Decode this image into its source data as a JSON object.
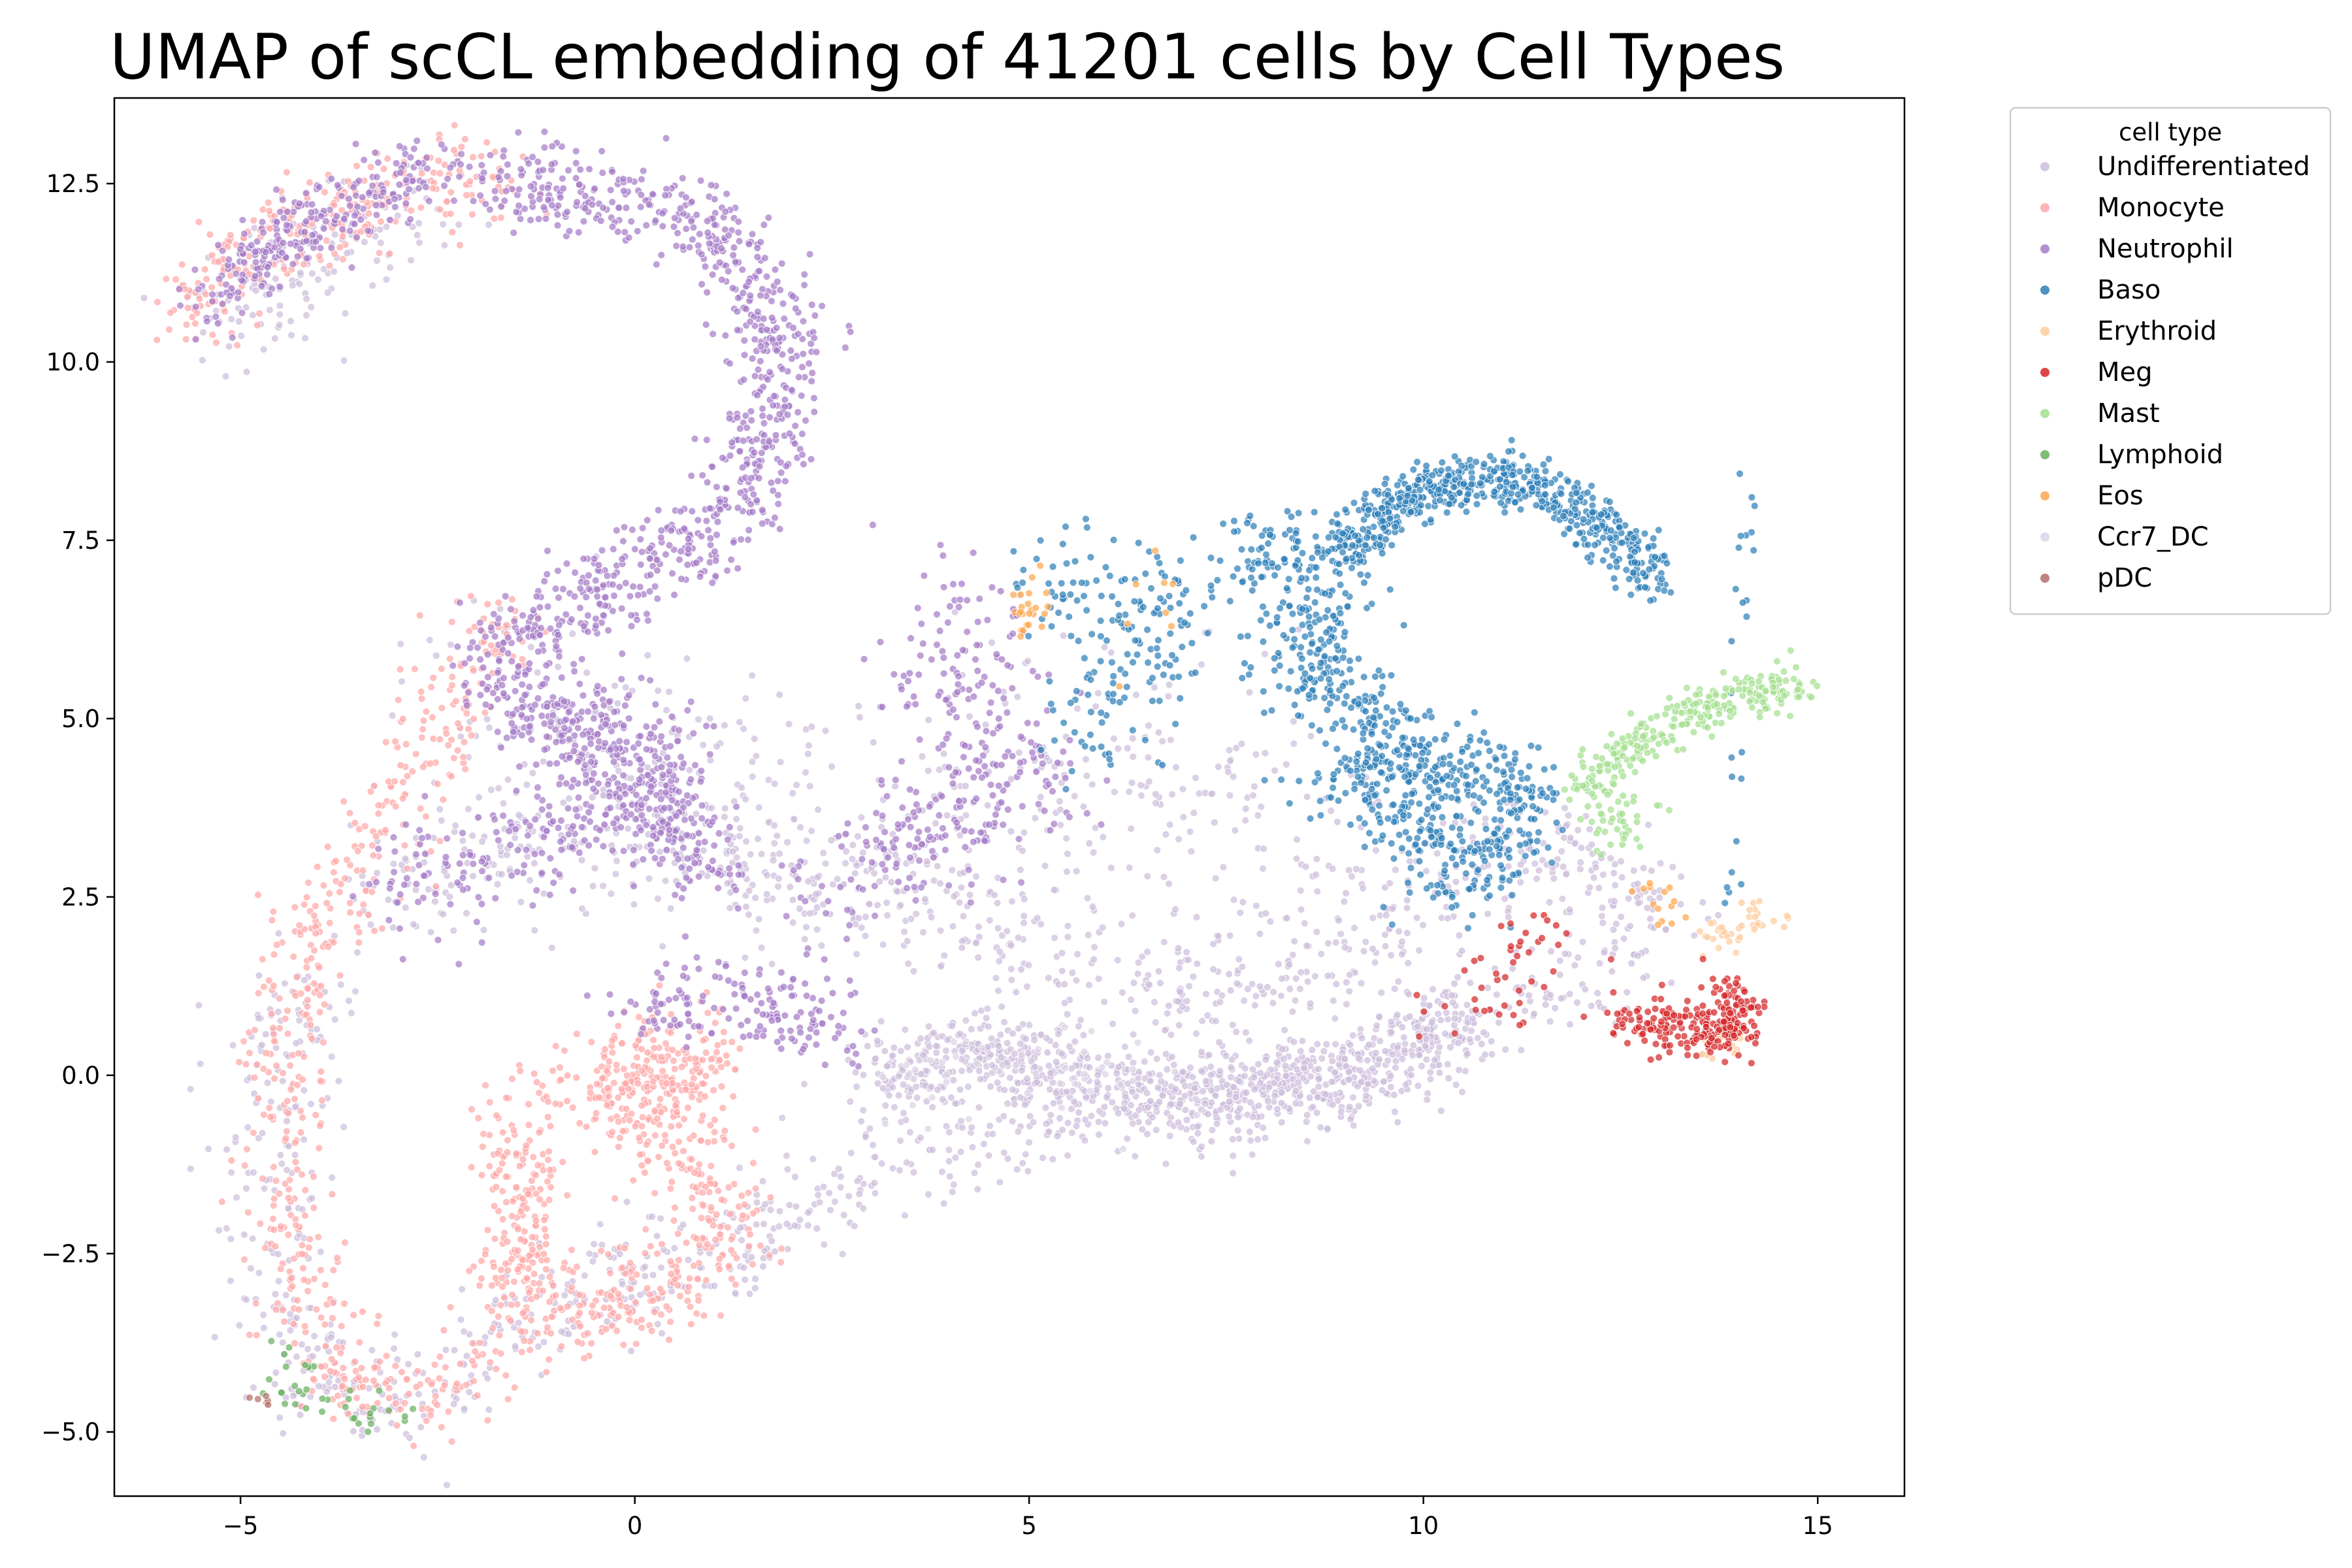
{
  "chart_data": {
    "type": "scatter",
    "title": "UMAP of scCL embedding of 41201 cells by Cell Types",
    "xlabel": "",
    "ylabel": "",
    "xlim": [
      -6.6,
      16.1
    ],
    "ylim": [
      -5.9,
      13.7
    ],
    "xticks": [
      -5,
      0,
      5,
      10,
      15
    ],
    "xtick_labels": [
      "−5",
      "0",
      "5",
      "10",
      "15"
    ],
    "yticks": [
      -5.0,
      -2.5,
      0.0,
      2.5,
      5.0,
      7.5,
      10.0,
      12.5
    ],
    "ytick_labels": [
      "−5.0",
      "−2.5",
      "0.0",
      "2.5",
      "5.0",
      "7.5",
      "10.0",
      "12.5"
    ],
    "grid": false,
    "legend": {
      "title": "cell type",
      "placement": "outside-top-right"
    },
    "series": [
      {
        "name": "Undifferentiated",
        "color": "#cdbedb",
        "regions": [
          {
            "path": [
              [
                -4.2,
                1.5
              ],
              [
                -4.6,
                0.0
              ],
              [
                -4.5,
                -2.5
              ],
              [
                -4.2,
                -4.0
              ],
              [
                -3.2,
                -4.6
              ],
              [
                -2.5,
                -4.4
              ],
              [
                -1.4,
                -3.4
              ],
              [
                0.5,
                -2.7
              ],
              [
                2.5,
                -1.8
              ],
              [
                4.0,
                -0.8
              ],
              [
                6.0,
                -0.5
              ],
              [
                8.0,
                -0.4
              ],
              [
                9.5,
                0.2
              ],
              [
                10.6,
                0.8
              ],
              [
                12.0,
                1.5
              ],
              [
                13.0,
                2.4
              ],
              [
                11.5,
                3.2
              ],
              [
                10.2,
                2.8
              ],
              [
                9.0,
                1.5
              ],
              [
                7.0,
                1.2
              ],
              [
                5.0,
                1.8
              ],
              [
                3.5,
                2.5
              ],
              [
                2.0,
                2.7
              ],
              [
                0.5,
                3.3
              ],
              [
                -1.0,
                3.2
              ],
              [
                -2.5,
                2.8
              ],
              [
                -3.5,
                2.5
              ]
            ],
            "n": 1500,
            "jitter": 0.4
          },
          {
            "path": [
              [
                -2.5,
                4.5
              ],
              [
                -1.0,
                4.8
              ],
              [
                1.0,
                4.3
              ],
              [
                2.2,
                3.2
              ],
              [
                3.0,
                2.8
              ],
              [
                4.5,
                3.3
              ],
              [
                5.5,
                4.8
              ],
              [
                6.5,
                4.3
              ],
              [
                7.5,
                3.6
              ],
              [
                8.2,
                2.6
              ],
              [
                9.0,
                2.2
              ]
            ],
            "n": 500,
            "jitter": 0.9
          },
          {
            "path": [
              [
                3.0,
                0.0
              ],
              [
                4.5,
                0.3
              ],
              [
                6.0,
                -0.2
              ],
              [
                7.5,
                -0.3
              ],
              [
                9.0,
                0.0
              ],
              [
                10.5,
                0.8
              ]
            ],
            "n": 900,
            "jitter": 0.3
          },
          {
            "path": [
              [
                -5.5,
                10.5
              ],
              [
                -4.5,
                11.2
              ],
              [
                -3.5,
                11.8
              ],
              [
                -2.5,
                12.1
              ]
            ],
            "n": 140,
            "jitter": 0.4
          }
        ]
      },
      {
        "name": "Monocyte",
        "color": "#ffa7a7",
        "regions": [
          {
            "path": [
              [
                -5.6,
                10.6
              ],
              [
                -5.0,
                11.5
              ],
              [
                -4.3,
                12.0
              ],
              [
                -3.6,
                12.2
              ],
              [
                -2.7,
                12.5
              ],
              [
                -1.6,
                12.6
              ]
            ],
            "n": 260,
            "jitter": 0.35
          },
          {
            "path": [
              [
                -1.6,
                6.5
              ],
              [
                -2.3,
                5.2
              ],
              [
                -3.0,
                3.8
              ],
              [
                -3.6,
                2.6
              ],
              [
                -4.2,
                1.6
              ],
              [
                -4.4,
                0.2
              ],
              [
                -4.4,
                -1.5
              ],
              [
                -4.2,
                -3.2
              ],
              [
                -3.6,
                -4.3
              ],
              [
                -2.6,
                -4.6
              ],
              [
                -1.8,
                -4.0
              ]
            ],
            "n": 520,
            "jitter": 0.3
          },
          {
            "path": [
              [
                -1.5,
                -0.5
              ],
              [
                -1.4,
                -2.0
              ],
              [
                -1.4,
                -3.4
              ],
              [
                -0.6,
                -3.3
              ],
              [
                0.5,
                -3.0
              ],
              [
                1.3,
                -2.2
              ],
              [
                0.8,
                -1.2
              ],
              [
                -0.3,
                -0.4
              ],
              [
                0.3,
                0.5
              ],
              [
                1.0,
                -0.1
              ],
              [
                -1.0,
                -0.2
              ]
            ],
            "n": 780,
            "jitter": 0.32
          }
        ]
      },
      {
        "name": "Neutrophil",
        "color": "#a57cc8",
        "regions": [
          {
            "path": [
              [
                -1.8,
                12.6
              ],
              [
                -0.6,
                12.3
              ],
              [
                0.6,
                12.2
              ],
              [
                1.5,
                11.3
              ],
              [
                1.9,
                10.3
              ],
              [
                1.8,
                9.2
              ],
              [
                1.4,
                8.3
              ],
              [
                0.8,
                7.5
              ],
              [
                -0.5,
                6.8
              ],
              [
                -1.3,
                6.2
              ],
              [
                -1.8,
                5.6
              ],
              [
                -1.2,
                5.0
              ],
              [
                -0.3,
                4.5
              ],
              [
                0.5,
                3.5
              ],
              [
                1.0,
                2.8
              ]
            ],
            "n": 1150,
            "jitter": 0.3
          },
          {
            "path": [
              [
                -5.3,
                10.8
              ],
              [
                -4.5,
                11.8
              ],
              [
                -3.5,
                12.3
              ],
              [
                -2.5,
                12.7
              ]
            ],
            "n": 260,
            "jitter": 0.25
          },
          {
            "path": [
              [
                -3.0,
                2.6
              ],
              [
                -2.0,
                3.0
              ],
              [
                -1.0,
                3.5
              ],
              [
                0.0,
                3.8
              ],
              [
                0.5,
                4.5
              ],
              [
                -0.8,
                5.2
              ]
            ],
            "n": 300,
            "jitter": 0.45
          },
          {
            "path": [
              [
                0.0,
                0.9
              ],
              [
                1.0,
                1.2
              ],
              [
                2.0,
                1.0
              ],
              [
                2.5,
                0.3
              ]
            ],
            "n": 160,
            "jitter": 0.3
          },
          {
            "path": [
              [
                2.5,
                2.3
              ],
              [
                3.2,
                3.2
              ],
              [
                4.0,
                3.5
              ],
              [
                5.0,
                4.3
              ],
              [
                4.0,
                5.5
              ],
              [
                4.2,
                6.8
              ]
            ],
            "n": 320,
            "jitter": 0.45
          }
        ]
      },
      {
        "name": "Baso",
        "color": "#2e7fb8",
        "regions": [
          {
            "path": [
              [
                9.0,
                7.3
              ],
              [
                9.5,
                7.9
              ],
              [
                10.2,
                8.3
              ],
              [
                11.0,
                8.4
              ],
              [
                11.8,
                8.0
              ],
              [
                12.5,
                7.5
              ],
              [
                12.9,
                6.9
              ]
            ],
            "n": 620,
            "jitter": 0.18
          },
          {
            "path": [
              [
                7.6,
                7.2
              ],
              [
                8.5,
                7.3
              ],
              [
                8.8,
                6.5
              ],
              [
                8.4,
                5.6
              ],
              [
                9.2,
                5.0
              ],
              [
                10.0,
                4.5
              ],
              [
                10.8,
                4.2
              ],
              [
                11.3,
                3.8
              ],
              [
                11.0,
                3.0
              ],
              [
                10.4,
                2.8
              ],
              [
                9.7,
                4.2
              ],
              [
                8.8,
                4.0
              ]
            ],
            "n": 800,
            "jitter": 0.32
          },
          {
            "path": [
              [
                5.2,
                7.2
              ],
              [
                6.0,
                6.7
              ],
              [
                7.0,
                6.4
              ],
              [
                6.0,
                5.2
              ],
              [
                5.5,
                4.5
              ]
            ],
            "n": 180,
            "jitter": 0.4
          },
          {
            "path": [
              [
                13.6,
                2.2
              ],
              [
                13.9,
                2.3
              ],
              [
                14.1,
                8.4
              ],
              [
                13.9,
                8.5
              ]
            ],
            "n": 24,
            "jitter": 0.08
          }
        ]
      },
      {
        "name": "Erythroid",
        "color": "#ffcc9e",
        "regions": [
          {
            "path": [
              [
                13.6,
                1.8
              ],
              [
                14.0,
                2.1
              ],
              [
                14.4,
                2.3
              ]
            ],
            "n": 40,
            "jitter": 0.15
          },
          {
            "path": [
              [
                13.5,
                0.4
              ],
              [
                14.0,
                0.5
              ]
            ],
            "n": 20,
            "jitter": 0.15
          }
        ]
      },
      {
        "name": "Meg",
        "color": "#d62728",
        "regions": [
          {
            "path": [
              [
                12.4,
                0.8
              ],
              [
                13.0,
                0.7
              ],
              [
                13.5,
                0.6
              ],
              [
                14.0,
                0.6
              ],
              [
                13.9,
                1.2
              ]
            ],
            "n": 240,
            "jitter": 0.18
          },
          {
            "path": [
              [
                10.2,
                0.8
              ],
              [
                11.2,
                1.6
              ],
              [
                11.8,
                2.0
              ]
            ],
            "n": 45,
            "jitter": 0.3
          }
        ]
      },
      {
        "name": "Mast",
        "color": "#a4df8f",
        "regions": [
          {
            "path": [
              [
                12.0,
                4.0
              ],
              [
                12.6,
                4.6
              ],
              [
                13.3,
                5.0
              ],
              [
                14.0,
                5.3
              ],
              [
                14.8,
                5.5
              ]
            ],
            "n": 260,
            "jitter": 0.16
          },
          {
            "path": [
              [
                12.3,
                3.3
              ],
              [
                12.6,
                3.9
              ]
            ],
            "n": 40,
            "jitter": 0.2
          }
        ]
      },
      {
        "name": "Lymphoid",
        "color": "#6ab061",
        "regions": [
          {
            "path": [
              [
                -4.7,
                -4.4
              ],
              [
                -4.0,
                -4.6
              ],
              [
                -3.4,
                -4.7
              ],
              [
                -2.8,
                -4.8
              ]
            ],
            "n": 30,
            "jitter": 0.12
          },
          {
            "path": [
              [
                -4.4,
                -3.8
              ],
              [
                -4.2,
                -4.1
              ]
            ],
            "n": 8,
            "jitter": 0.12
          }
        ]
      },
      {
        "name": "Eos",
        "color": "#ffa64c",
        "regions": [
          {
            "path": [
              [
                4.9,
                6.6
              ],
              [
                5.0,
                6.3
              ],
              [
                5.2,
                6.9
              ]
            ],
            "n": 24,
            "jitter": 0.12
          },
          {
            "path": [
              [
                12.8,
                2.6
              ],
              [
                13.2,
                2.2
              ]
            ],
            "n": 14,
            "jitter": 0.15
          },
          {
            "path": [
              [
                6.2,
                5.8
              ],
              [
                7.0,
                7.3
              ]
            ],
            "n": 8,
            "jitter": 0.2
          }
        ]
      },
      {
        "name": "Ccr7_DC",
        "color": "#dcd4e6",
        "regions": [
          {
            "path": [
              [
                3.0,
                -0.3
              ],
              [
                5.0,
                0.2
              ],
              [
                7.0,
                -0.4
              ]
            ],
            "n": 50,
            "jitter": 0.35
          }
        ]
      },
      {
        "name": "pDC",
        "color": "#b5706c",
        "regions": [
          {
            "path": [
              [
                -4.9,
                -4.6
              ],
              [
                -4.6,
                -4.5
              ]
            ],
            "n": 6,
            "jitter": 0.08
          }
        ]
      }
    ]
  }
}
